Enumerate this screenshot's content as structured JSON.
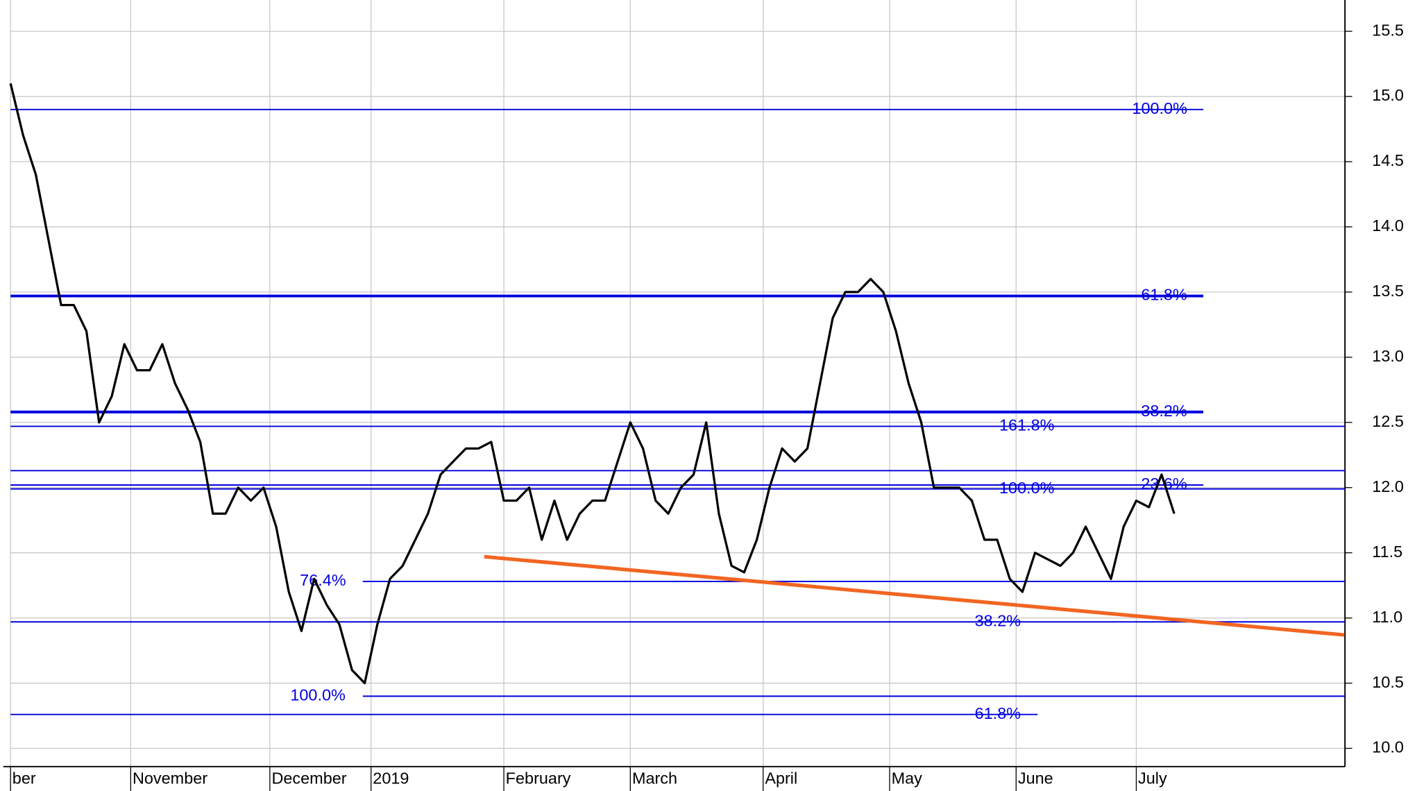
{
  "chart_data": {
    "type": "line",
    "xlim": [
      0,
      211
    ],
    "xticks": [
      {
        "value": 0,
        "label": "ber"
      },
      {
        "value": 19,
        "label": "November"
      },
      {
        "value": 41,
        "label": "December"
      },
      {
        "value": 57,
        "label": "2019"
      },
      {
        "value": 78,
        "label": "February"
      },
      {
        "value": 98,
        "label": "March"
      },
      {
        "value": 119,
        "label": "April"
      },
      {
        "value": 139,
        "label": "May"
      },
      {
        "value": 159,
        "label": "June"
      },
      {
        "value": 178,
        "label": "July"
      }
    ],
    "ylim": [
      9.86,
      15.74
    ],
    "yticks": [
      {
        "value": 10,
        "label": "10.0"
      },
      10.5,
      {
        "value": 11,
        "label": "11.0"
      },
      11.5,
      {
        "value": 12,
        "label": "12.0"
      },
      12.5,
      {
        "value": 13,
        "label": "13.0"
      },
      13.5,
      {
        "value": 14,
        "label": "14.0"
      },
      14.5,
      {
        "value": 15,
        "label": "15.0"
      },
      15.5
    ],
    "grid": true,
    "series": [
      {
        "color": "#000000",
        "x": [
          0,
          2,
          4,
          6,
          8,
          10,
          12,
          14,
          16,
          18,
          20,
          22,
          24,
          26,
          28,
          30,
          32,
          34,
          36,
          38,
          40,
          42,
          44,
          46,
          48,
          50,
          52,
          54,
          56,
          58,
          60,
          62,
          64,
          66,
          68,
          70,
          72,
          74,
          76,
          78,
          80,
          82,
          84,
          86,
          88,
          90,
          92,
          94,
          96,
          98,
          100,
          102,
          104,
          106,
          108,
          110,
          112,
          114,
          116,
          118,
          120,
          122,
          124,
          126,
          128,
          130,
          132,
          134,
          136,
          138,
          140,
          142,
          144,
          146,
          148,
          150,
          152,
          154,
          156,
          158,
          160,
          162,
          164,
          166,
          168,
          170,
          172,
          174,
          176,
          178,
          180,
          182,
          184
        ],
        "values": [
          15.1,
          14.7,
          14.4,
          13.9,
          13.4,
          13.4,
          13.2,
          12.5,
          12.7,
          13.1,
          12.9,
          12.9,
          13.1,
          12.8,
          12.6,
          12.35,
          11.8,
          11.8,
          12.0,
          11.9,
          12.0,
          11.7,
          11.2,
          10.9,
          11.3,
          11.1,
          10.95,
          10.6,
          10.5,
          10.95,
          11.3,
          11.4,
          11.6,
          11.8,
          12.1,
          12.2,
          12.3,
          12.3,
          12.35,
          11.9,
          11.9,
          12.0,
          11.6,
          11.9,
          11.6,
          11.8,
          11.9,
          11.9,
          12.2,
          12.5,
          12.3,
          11.9,
          11.8,
          12.0,
          12.1,
          12.5,
          11.8,
          11.4,
          11.35,
          11.6,
          12.0,
          12.3,
          12.2,
          12.3,
          12.8,
          13.3,
          13.5,
          13.5,
          13.6,
          13.5,
          13.2,
          12.8,
          12.5,
          12.0,
          12.0,
          12.0,
          11.9,
          11.6,
          11.6,
          11.3,
          11.2,
          11.5,
          11.45,
          11.4,
          11.5,
          11.7,
          11.5,
          11.3,
          11.7,
          11.9,
          11.85,
          12.1,
          11.8
        ]
      }
    ],
    "levels": [
      {
        "value": 14.9,
        "start": 0,
        "end": 188.6,
        "label": "100.0%",
        "label_at": 181.7,
        "width": 1.5
      },
      {
        "value": 13.47,
        "start": 0,
        "end": 188.6,
        "label": "61.8%",
        "label_at": 182.4,
        "width": 3
      },
      {
        "value": 12.58,
        "start": 0,
        "end": 188.6,
        "label": "38.2%",
        "label_at": 182.4,
        "width": 3
      },
      {
        "value": 12.47,
        "start": 0,
        "end": 211,
        "label": "161.8%",
        "label_at": 160.7,
        "width": 1.5
      },
      {
        "value": 12.13,
        "start": 0,
        "end": 211,
        "width": 1.5
      },
      {
        "value": 12.02,
        "start": 0,
        "end": 188.6,
        "label": "23.6%",
        "label_at": 182.4,
        "width": 1.5
      },
      {
        "value": 11.99,
        "start": 0,
        "end": 211,
        "label": "100.0%",
        "label_at": 160.7,
        "width": 1.5
      },
      {
        "value": 11.28,
        "start": 55.7,
        "end": 211,
        "label": "76.4%",
        "label_at": 49.4,
        "width": 1.5
      },
      {
        "value": 10.97,
        "start": 0,
        "end": 211,
        "label": "38.2%",
        "label_at": 156.1,
        "width": 1.5
      },
      {
        "value": 10.4,
        "start": 55.7,
        "end": 211,
        "label": "100.0%",
        "label_at": 48.6,
        "width": 1.5
      },
      {
        "value": 10.26,
        "start": 0,
        "end": 162.4,
        "label": "61.8%",
        "label_at": 156.1,
        "width": 1.5
      }
    ],
    "level_color": "#0000dd",
    "trendline": {
      "color": "#f26522",
      "x": [
        74.9,
        210.9
      ],
      "values": [
        11.47,
        10.87
      ]
    }
  }
}
